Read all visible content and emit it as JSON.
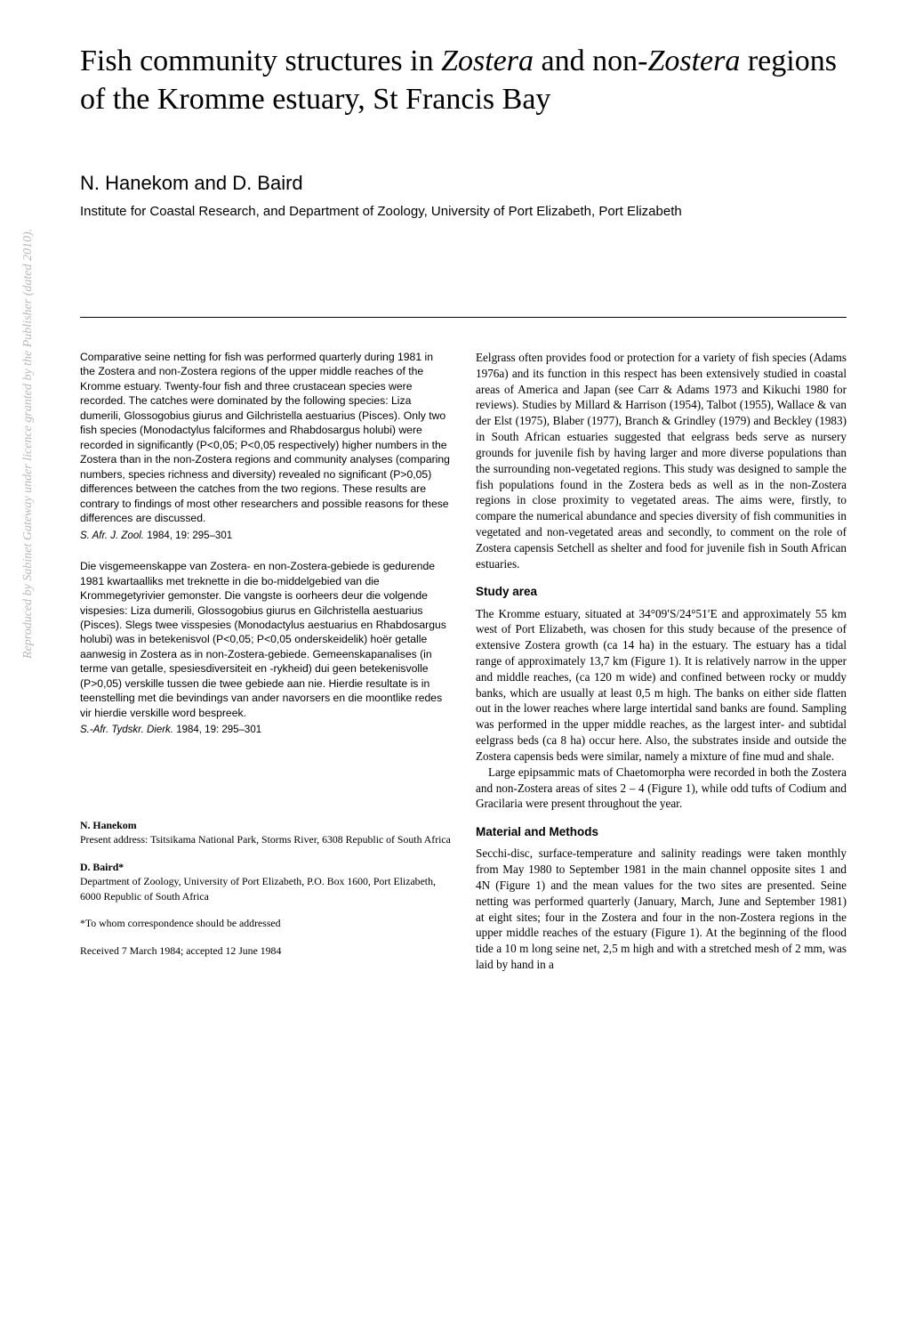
{
  "title_parts": {
    "p1": "Fish community structures in ",
    "i1": "Zostera",
    "p2": " and non-",
    "i2": "Zostera",
    "p3": " regions of the Kromme estuary, St Francis Bay"
  },
  "authors": "N. Hanekom and D. Baird",
  "affiliation": "Institute for Coastal Research, and Department of Zoology, University of Port Elizabeth, Port Elizabeth",
  "abstract_en": "Comparative seine netting for fish was performed quarterly during 1981 in the Zostera and non-Zostera regions of the upper middle reaches of the Kromme estuary. Twenty-four fish and three crustacean species were recorded. The catches were dominated by the following species: Liza dumerili, Glossogobius giurus and Gilchristella aestuarius (Pisces). Only two fish species (Monodactylus falciformes and Rhabdosargus holubi) were recorded in significantly (P<0,05; P<0,05 respectively) higher numbers in the Zostera than in the non-Zostera regions and community analyses (comparing numbers, species richness and diversity) revealed no significant (P>0,05) differences between the catches from the two regions. These results are contrary to findings of most other researchers and possible reasons for these differences are discussed.",
  "citation_en_journal": "S. Afr. J. Zool.",
  "citation_en_rest": " 1984, 19: 295–301",
  "abstract_af": "Die visgemeenskappe van Zostera- en non-Zostera-gebiede is gedurende 1981 kwartaalliks met treknette in die bo-middelgebied van die Krommegetyrivier gemonster. Die vangste is oorheers deur die volgende vispesies: Liza dumerili, Glossogobius giurus en Gilchristella aestuarius (Pisces). Slegs twee visspesies (Monodactylus aestuarius en Rhabdosargus holubi) was in betekenisvol (P<0,05; P<0,05 onderskeidelik) hoër getalle aanwesig in Zostera as in non-Zostera-gebiede. Gemeenskapanalises (in terme van getalle, spesiesdiversiteit en -rykheid) dui geen betekenisvolle (P>0,05) verskille tussen die twee gebiede aan nie. Hierdie resultate is in teenstelling met die bevindings van ander navorsers en die moontlike redes vir hierdie verskille word bespreek.",
  "citation_af_journal": "S.-Afr. Tydskr. Dierk.",
  "citation_af_rest": " 1984, 19: 295–301",
  "author_blocks": {
    "a1_name": "N. Hanekom",
    "a1_addr": "Present address: Tsitsikama National Park, Storms River, 6308 Republic of South Africa",
    "a2_name": "D. Baird*",
    "a2_addr": "Department of Zoology, University of Port Elizabeth, P.O. Box 1600, Port Elizabeth, 6000 Republic of South Africa",
    "corr": "*To whom correspondence should be addressed",
    "received": "Received 7 March 1984; accepted 12 June 1984"
  },
  "intro_p1": "Eelgrass often provides food or protection for a variety of fish species (Adams 1976a) and its function in this respect has been extensively studied in coastal areas of America and Japan (see Carr & Adams 1973 and Kikuchi 1980 for reviews). Studies by Millard & Harrison (1954), Talbot (1955), Wallace & van der Elst (1975), Blaber (1977), Branch & Grindley (1979) and Beckley (1983) in South African estuaries suggested that eelgrass beds serve as nursery grounds for juvenile fish by having larger and more diverse populations than the surrounding non-vegetated regions. This study was designed to sample the fish populations found in the Zostera beds as well as in the non-Zostera regions in close proximity to vegetated areas. The aims were, firstly, to compare the numerical abundance and species diversity of fish communities in vegetated and non-vegetated areas and secondly, to comment on the role of Zostera capensis Setchell as shelter and food for juvenile fish in South African estuaries.",
  "study_area_heading": "Study area",
  "study_p1": "The Kromme estuary, situated at 34°09′S/24°51′E and approximately 55 km west of Port Elizabeth, was chosen for this study because of the presence of extensive Zostera growth (ca 14 ha) in the estuary. The estuary has a tidal range of approximately 13,7 km (Figure 1). It is relatively narrow in the upper and middle reaches, (ca 120 m wide) and confined between rocky or muddy banks, which are usually at least 0,5 m high. The banks on either side flatten out in the lower reaches where large intertidal sand banks are found. Sampling was performed in the upper middle reaches, as the largest inter- and subtidal eelgrass beds (ca 8 ha) occur here. Also, the substrates inside and outside the Zostera capensis beds were similar, namely a mixture of fine mud and shale.",
  "study_p2": "Large epipsammic mats of Chaetomorpha were recorded in both the Zostera and non-Zostera areas of sites 2 – 4 (Figure 1), while odd tufts of Codium and Gracilaria were present throughout the year.",
  "methods_heading": "Material and Methods",
  "methods_p1": "Secchi-disc, surface-temperature and salinity readings were taken monthly from May 1980 to September 1981 in the main channel opposite sites 1 and 4N (Figure 1) and the mean values for the two sites are presented. Seine netting was performed quarterly (January, March, June and September 1981) at eight sites; four in the Zostera and four in the non-Zostera regions in the upper middle reaches of the estuary (Figure 1). At the beginning of the flood tide a 10 m long seine net, 2,5 m high and with a stretched mesh of 2 mm, was laid by hand in a",
  "watermark": "Reproduced by Sabinet Gateway under licence granted by the Publisher (dated 2010)."
}
